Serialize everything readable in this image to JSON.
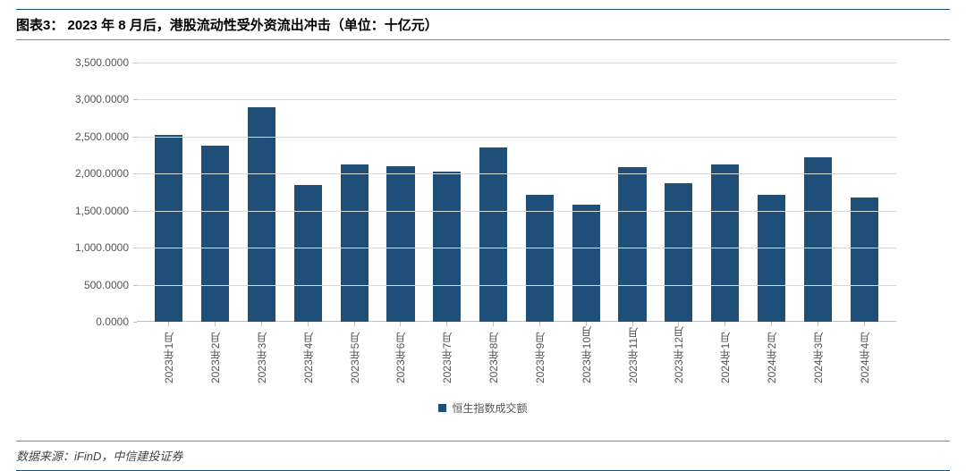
{
  "header": {
    "prefix": "图表3：  ",
    "title": "2023 年 8 月后，港股流动性受外资流出冲击（单位：十亿元）"
  },
  "chart": {
    "type": "bar",
    "categories": [
      "2023年1月",
      "2023年2月",
      "2023年3月",
      "2023年4月",
      "2023年5月",
      "2023年6月",
      "2023年7月",
      "2023年8月",
      "2023年9月",
      "2023年10月",
      "2023年11月",
      "2023年12月",
      "2024年1月",
      "2024年2月",
      "2024年3月",
      "2024年4月"
    ],
    "values": [
      2520,
      2380,
      2900,
      1850,
      2120,
      2100,
      2030,
      2350,
      1720,
      1580,
      2090,
      1870,
      2130,
      1710,
      2220,
      1680
    ],
    "bar_color": "#1f4e79",
    "bar_width_pct": 60,
    "ylim": [
      0,
      3500
    ],
    "ytick_step": 500,
    "ytick_labels": [
      "0.0000",
      "500.0000",
      "1,000.0000",
      "1,500.0000",
      "2,000.0000",
      "2,500.0000",
      "3,000.0000",
      "3,500.0000"
    ],
    "grid_color": "#d9d9d9",
    "axis_color": "#bfbfbf",
    "background_color": "#ffffff",
    "tick_font_size": 12,
    "tick_font_color": "#555555",
    "legend": {
      "label": "恒生指数成交额",
      "swatch_color": "#1f4e79",
      "position": "bottom-center"
    }
  },
  "source": {
    "label": "数据来源：iFinD，中信建投证券"
  }
}
